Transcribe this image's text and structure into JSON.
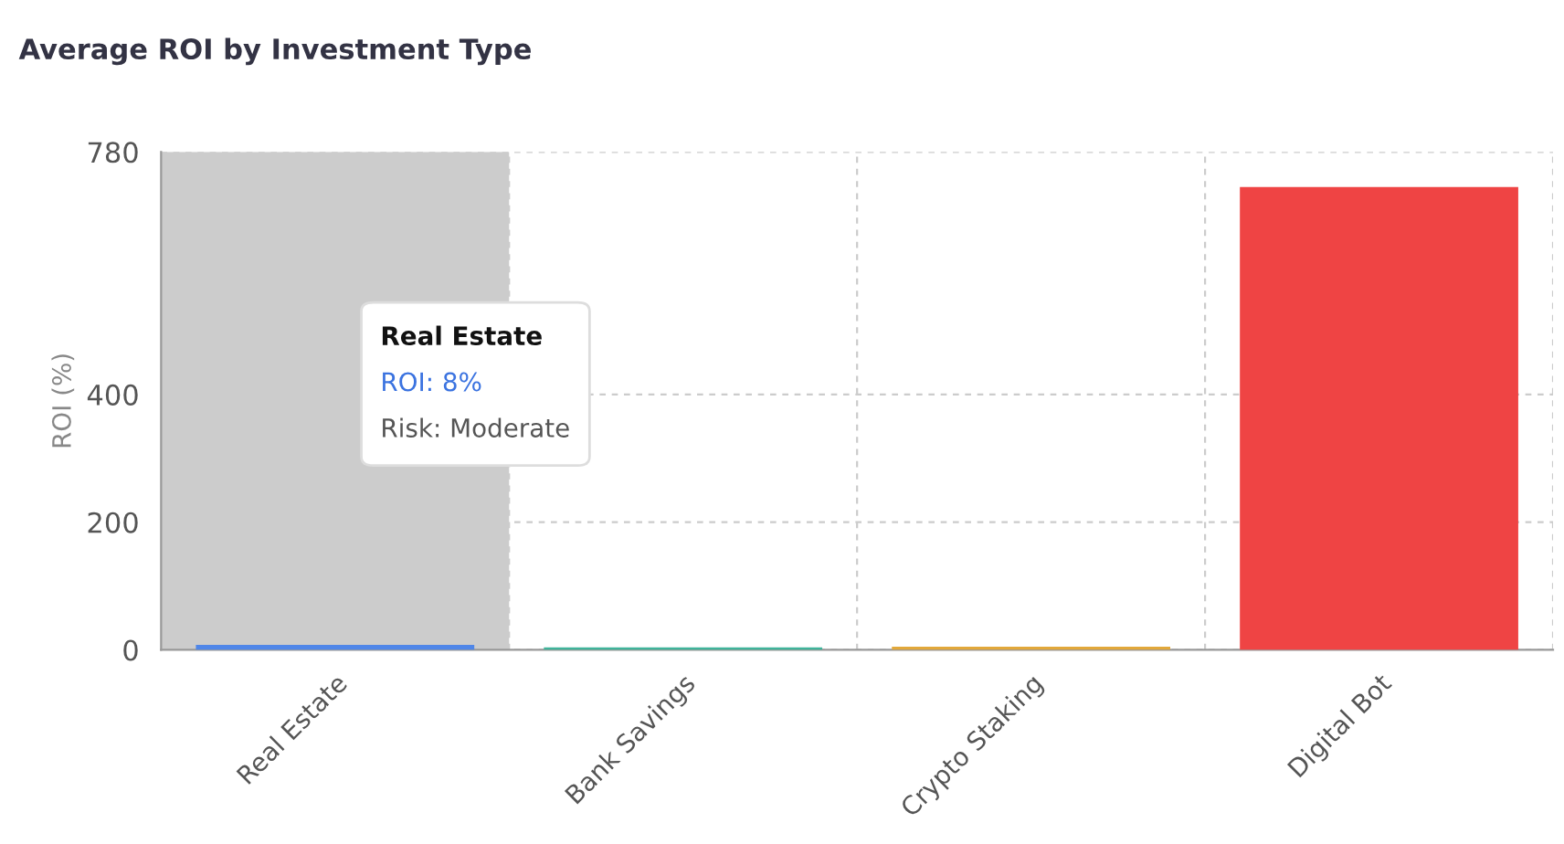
{
  "chart_data": {
    "type": "bar",
    "title": "Average ROI by Investment Type",
    "ylabel": "ROI (%)",
    "categories": [
      "Real Estate",
      "Bank Savings",
      "Crypto Staking",
      "Digital Bot"
    ],
    "values": [
      8,
      4,
      5,
      725
    ],
    "colors": [
      "#4f86e8",
      "#3fb39a",
      "#e2a83a",
      "#ef4444"
    ],
    "ylim": [
      0,
      780
    ],
    "yticks": [
      0,
      200,
      400,
      780
    ],
    "grid": true,
    "bands": [
      {
        "axis": "x",
        "from": "Real Estate",
        "to": "Real Estate",
        "color": "#cccccc"
      }
    ],
    "annotations": [
      "Real Estate",
      "ROI: 8%",
      "Risk: Moderate"
    ]
  }
}
